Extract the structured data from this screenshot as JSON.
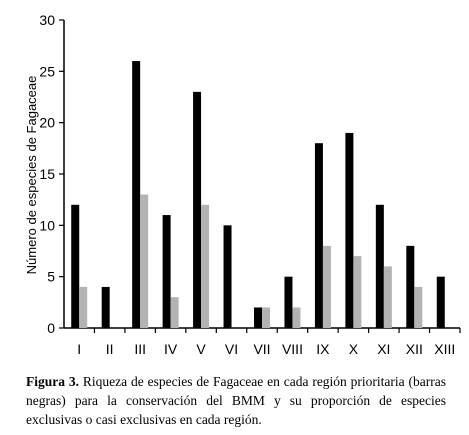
{
  "caption": {
    "lead": "Figura 3.",
    "text": " Riqueza de especies de Fagaceae en cada región prioritaria (barras negras) para la conservación del BMM y su proporción de especies exclusivas o casi exclusivas en cada región."
  },
  "chart_data": {
    "type": "bar",
    "title": "",
    "xlabel": "",
    "ylabel": "Número de especies de Fagaceae",
    "ylim": [
      0,
      30
    ],
    "yticks": [
      0,
      5,
      10,
      15,
      20,
      25,
      30
    ],
    "categories": [
      "I",
      "II",
      "III",
      "IV",
      "V",
      "VI",
      "VII",
      "VIII",
      "IX",
      "X",
      "XI",
      "XII",
      "XIII"
    ],
    "series": [
      {
        "color": "#000000",
        "values": [
          12,
          4,
          26,
          11,
          23,
          10,
          2,
          5,
          18,
          19,
          12,
          8,
          5
        ]
      },
      {
        "color": "#b3b3b3",
        "values": [
          4,
          0,
          13,
          3,
          12,
          0,
          2,
          2,
          8,
          7,
          6,
          4,
          0
        ]
      }
    ],
    "grid": false,
    "legend": "none"
  }
}
